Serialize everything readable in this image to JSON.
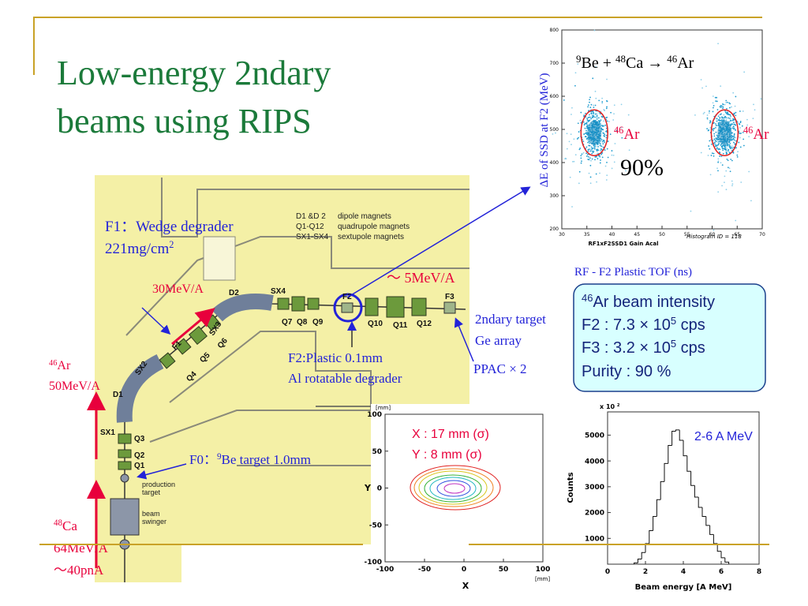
{
  "title": [
    "Low-energy 2ndary",
    "beams using RIPS"
  ],
  "beamline": {
    "legend": [
      [
        "D1 &D 2",
        "dipole magnets"
      ],
      [
        "Q1-Q12",
        "quadrupole magnets"
      ],
      [
        "SX1-SX4",
        "sextupole magnets"
      ]
    ],
    "magnet_labels": [
      "D1",
      "D2",
      "SX1",
      "SX2",
      "SX3",
      "SX4",
      "Q1",
      "Q2",
      "Q3",
      "Q4",
      "Q5",
      "Q6",
      "Q7",
      "Q8",
      "Q9",
      "Q10",
      "Q11",
      "Q12",
      "F1",
      "F2",
      "F3"
    ],
    "production_target": [
      "production",
      "target"
    ],
    "beam_swinger": [
      "beam",
      "swinger"
    ],
    "f1_degrader": [
      "F1：Wedge degrader",
      [
        "221mg/cm",
        {
          "sup": "2"
        }
      ]
    ],
    "energy_f1": "30MeV/A",
    "energy_f2": "～ 5MeV/A",
    "f2_degrader": [
      "F2:Plastic 0.1mm",
      "Al rotatable degrader"
    ],
    "f3_setup": [
      "2ndary target",
      "Ge array"
    ],
    "ppac": "PPAC × 2",
    "ar_beam": [
      [
        {
          "sup": "46"
        },
        "Ar"
      ],
      "50MeV/A"
    ],
    "ca_beam": [
      [
        {
          "sup": "48"
        },
        "Ca"
      ],
      "64MeV/A",
      "～40pnA"
    ],
    "f0_target": [
      "F0：",
      {
        "sup": "9"
      },
      "Be target 1.0mm"
    ]
  },
  "pid_plot": {
    "reaction": [
      {
        "sup": "9"
      },
      "Be + ",
      {
        "sup": "48"
      },
      "Ca → ",
      {
        "sup": "46"
      },
      "Ar"
    ],
    "ylabel": "ΔE of SSD at F2 (MeV)",
    "xlabel": "RF1xF2SSD1 Gain Acal",
    "histogram_id": "Histogram ID = 118",
    "x_caption": "RF - F2 Plastic TOF (ns)",
    "cluster_label": [
      {
        "sup": "46"
      },
      "Ar"
    ],
    "purity": "90%",
    "xlim": [
      30,
      70
    ],
    "ylim": [
      200,
      800
    ],
    "xticks": [
      30,
      35,
      40,
      45,
      50,
      55,
      60,
      65,
      70
    ],
    "yticks": [
      200,
      300,
      400,
      500,
      600,
      700,
      800
    ],
    "clusters": [
      {
        "x": 36.5,
        "y": 490
      },
      {
        "x": 62.5,
        "y": 490
      }
    ]
  },
  "info_box": [
    [
      {
        "sup": "46"
      },
      "Ar beam intensity"
    ],
    [
      "F2 : 7.3 × 10",
      {
        "sup": "5"
      },
      " cps"
    ],
    [
      "F3 : 3.2 × 10",
      {
        "sup": "5"
      },
      " cps"
    ],
    [
      "Purity : 90 %"
    ]
  ],
  "emittance_plot": {
    "xlabel": "X",
    "ylabel": "Y",
    "x_unit": "[mm]",
    "y_unit": "[mm]",
    "sigma": [
      "X : 17 mm (σ)",
      "Y : 8 mm (σ)"
    ],
    "xlim": [
      -100,
      100
    ],
    "ylim": [
      -100,
      100
    ],
    "xticks": [
      -100,
      -50,
      0,
      50,
      100
    ],
    "yticks": [
      -100,
      -50,
      0,
      50,
      100
    ]
  },
  "energy_histogram": {
    "type": "histogram",
    "scale_note": [
      "x 10 ",
      {
        "sup": "2"
      }
    ],
    "ylabel": "Counts",
    "xlabel": "Beam energy [A MeV]",
    "annotation": "2-6 A MeV",
    "xlim": [
      0,
      8
    ],
    "ylim": [
      0,
      5900
    ],
    "xticks": [
      0,
      2,
      4,
      6,
      8
    ],
    "yticks": [
      1000,
      2000,
      3000,
      4000,
      5000
    ],
    "bins": [
      1.4,
      1.6,
      1.8,
      2.0,
      2.2,
      2.4,
      2.6,
      2.8,
      3.0,
      3.2,
      3.4,
      3.6,
      3.8,
      4.0,
      4.2,
      4.4,
      4.6,
      4.8,
      5.0,
      5.2,
      5.4,
      5.6,
      5.8,
      6.0,
      6.2,
      6.4
    ],
    "values": [
      50,
      200,
      450,
      800,
      1300,
      1850,
      2500,
      3200,
      3900,
      4600,
      5150,
      5200,
      4800,
      4200,
      3600,
      3050,
      2600,
      2200,
      1850,
      1500,
      1150,
      800,
      500,
      250,
      80
    ]
  }
}
